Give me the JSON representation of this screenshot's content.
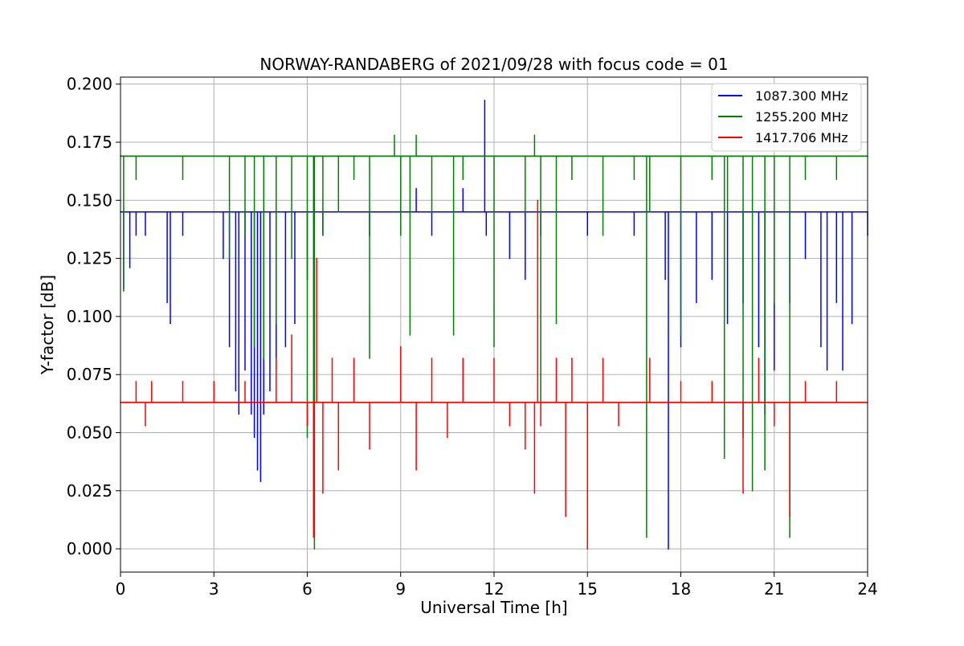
{
  "chart_data": {
    "type": "line",
    "title": "NORWAY-RANDABERG of 2021/09/28 with focus code = 01",
    "xlabel": "Universal Time [h]",
    "ylabel": "Y-factor [dB]",
    "xlim": [
      0,
      24
    ],
    "ylim": [
      -0.01,
      0.203
    ],
    "xticks": [
      0,
      3,
      6,
      9,
      12,
      15,
      18,
      21,
      24
    ],
    "xtick_labels": [
      "0",
      "3",
      "6",
      "9",
      "12",
      "15",
      "18",
      "21",
      "24"
    ],
    "yticks": [
      0.0,
      0.025,
      0.05,
      0.075,
      0.1,
      0.125,
      0.15,
      0.175,
      0.2
    ],
    "ytick_labels": [
      "0.000",
      "0.025",
      "0.050",
      "0.075",
      "0.100",
      "0.125",
      "0.150",
      "0.175",
      "0.200"
    ],
    "grid": true,
    "legend_position": "top-right",
    "series": [
      {
        "name": "1087.300 MHz",
        "color": "#0000ff",
        "baseline": 0.145,
        "x": [
          0.0,
          0.1,
          0.3,
          0.5,
          0.8,
          1.2,
          1.5,
          1.6,
          2.0,
          2.5,
          3.0,
          3.3,
          3.5,
          3.7,
          3.8,
          4.0,
          4.2,
          4.3,
          4.4,
          4.5,
          4.6,
          4.8,
          5.0,
          5.3,
          5.6,
          6.0,
          6.5,
          7.0,
          8.0,
          9.0,
          9.5,
          10.0,
          11.0,
          11.7,
          11.75,
          12.0,
          12.5,
          13.0,
          13.5,
          14.0,
          15.0,
          16.0,
          16.5,
          17.0,
          17.5,
          17.6,
          18.0,
          18.5,
          19.0,
          19.5,
          20.0,
          20.5,
          20.7,
          21.0,
          21.5,
          22.0,
          22.5,
          22.7,
          23.0,
          23.2,
          23.5,
          24.0
        ],
        "y": [
          0.145,
          0.112,
          0.121,
          0.135,
          0.135,
          0.145,
          0.106,
          0.097,
          0.135,
          0.145,
          0.145,
          0.125,
          0.087,
          0.068,
          0.058,
          0.077,
          0.058,
          0.048,
          0.034,
          0.029,
          0.058,
          0.068,
          0.077,
          0.087,
          0.097,
          0.116,
          0.135,
          0.145,
          0.135,
          0.145,
          0.155,
          0.135,
          0.155,
          0.193,
          0.135,
          0.145,
          0.125,
          0.116,
          0.135,
          0.145,
          0.135,
          0.145,
          0.135,
          0.145,
          0.116,
          0.0,
          0.087,
          0.106,
          0.116,
          0.097,
          0.106,
          0.087,
          0.058,
          0.077,
          0.106,
          0.125,
          0.087,
          0.077,
          0.106,
          0.077,
          0.097,
          0.135
        ]
      },
      {
        "name": "1255.200 MHz",
        "color": "#008000",
        "baseline": 0.169,
        "x": [
          0.0,
          0.1,
          0.5,
          1.0,
          2.0,
          3.0,
          3.5,
          4.0,
          4.3,
          4.6,
          5.0,
          5.5,
          6.0,
          6.2,
          6.23,
          6.5,
          7.0,
          7.5,
          8.0,
          8.8,
          9.0,
          9.3,
          9.5,
          10.0,
          10.5,
          10.7,
          11.0,
          11.5,
          12.0,
          12.5,
          13.0,
          13.3,
          13.5,
          13.8,
          14.0,
          14.5,
          15.0,
          15.5,
          16.0,
          16.5,
          16.9,
          17.0,
          17.5,
          18.0,
          18.5,
          19.0,
          19.4,
          19.5,
          20.0,
          20.3,
          20.7,
          21.0,
          21.5,
          22.0,
          22.5,
          23.0,
          23.5,
          24.0
        ],
        "y": [
          0.169,
          0.111,
          0.159,
          0.169,
          0.159,
          0.169,
          0.125,
          0.135,
          0.087,
          0.082,
          0.097,
          0.125,
          0.048,
          0.01,
          0.0,
          0.135,
          0.145,
          0.159,
          0.082,
          0.178,
          0.135,
          0.092,
          0.178,
          0.145,
          0.169,
          0.092,
          0.159,
          0.169,
          0.087,
          0.169,
          0.145,
          0.178,
          0.063,
          0.169,
          0.097,
          0.159,
          0.169,
          0.135,
          0.169,
          0.159,
          0.005,
          0.145,
          0.169,
          0.092,
          0.169,
          0.159,
          0.039,
          0.145,
          0.048,
          0.025,
          0.034,
          0.106,
          0.005,
          0.159,
          0.169,
          0.159,
          0.169,
          0.169
        ]
      },
      {
        "name": "1417.706 MHz",
        "color": "#ff0000",
        "baseline": 0.063,
        "x": [
          0.0,
          0.5,
          0.8,
          1.0,
          2.0,
          3.0,
          4.0,
          5.0,
          5.5,
          6.0,
          6.2,
          6.3,
          6.5,
          6.8,
          7.0,
          7.5,
          8.0,
          9.0,
          9.5,
          10.0,
          10.5,
          11.0,
          12.0,
          12.5,
          13.0,
          13.3,
          13.4,
          13.5,
          14.0,
          14.3,
          14.5,
          15.0,
          15.5,
          16.0,
          17.0,
          18.0,
          19.0,
          20.0,
          20.5,
          21.0,
          21.5,
          22.0,
          23.0,
          24.0
        ],
        "y": [
          0.063,
          0.072,
          0.053,
          0.072,
          0.072,
          0.072,
          0.072,
          0.082,
          0.092,
          0.053,
          0.005,
          0.125,
          0.024,
          0.082,
          0.034,
          0.082,
          0.043,
          0.087,
          0.034,
          0.082,
          0.048,
          0.082,
          0.082,
          0.053,
          0.043,
          0.024,
          0.15,
          0.053,
          0.082,
          0.014,
          0.082,
          0.0,
          0.082,
          0.053,
          0.082,
          0.072,
          0.072,
          0.024,
          0.082,
          0.053,
          0.014,
          0.072,
          0.072,
          0.063
        ]
      }
    ]
  }
}
